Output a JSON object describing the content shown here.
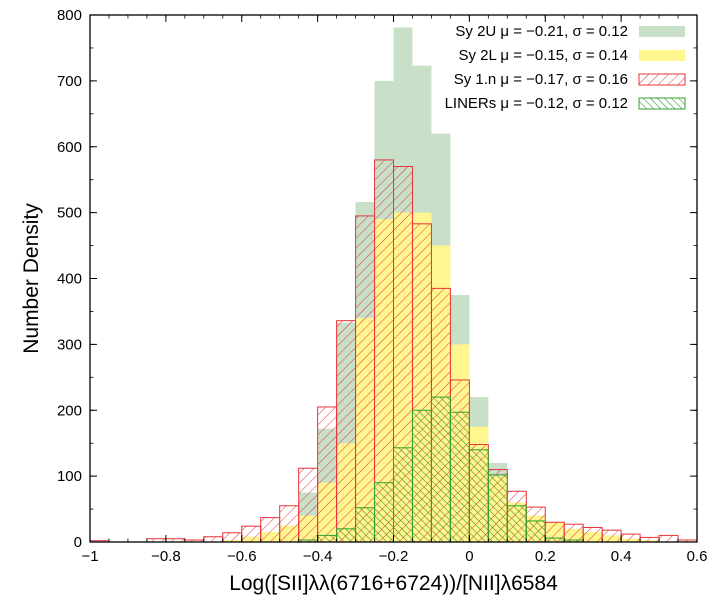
{
  "chart_data": {
    "type": "bar",
    "xlabel": "Log([SII]λλ(6716+6724))/[NII]λ6584",
    "ylabel": "Number Density",
    "xlim": [
      -1.0,
      0.6
    ],
    "ylim": [
      0,
      800
    ],
    "bin_width": 0.05,
    "x_ticks": [
      -1,
      -0.8,
      -0.6,
      -0.4,
      -0.2,
      0,
      0.2,
      0.4,
      0.6
    ],
    "x_tick_labels": [
      "−1",
      "−0.8",
      "−0.6",
      "−0.4",
      "−0.2",
      "0",
      "0.2",
      "0.4",
      "0.6"
    ],
    "y_ticks": [
      0,
      100,
      200,
      300,
      400,
      500,
      600,
      700,
      800
    ],
    "y_tick_labels": [
      "0",
      "100",
      "200",
      "300",
      "400",
      "500",
      "600",
      "700",
      "800"
    ],
    "grid": false,
    "legend_position": "top-right",
    "series": [
      {
        "name": "Sy 2U μ = −0.21, σ = 0.12",
        "style": "solid",
        "color": "#c8dfc8",
        "x": [
          -0.5,
          -0.45,
          -0.4,
          -0.35,
          -0.3,
          -0.25,
          -0.2,
          -0.15,
          -0.1,
          -0.05,
          0.0,
          0.05,
          0.1,
          0.15,
          0.2
        ],
        "values": [
          20,
          75,
          172,
          333,
          516,
          700,
          781,
          723,
          620,
          375,
          220,
          120,
          40,
          15,
          5
        ]
      },
      {
        "name": "Sy 2L μ = −0.15, σ = 0.14",
        "style": "solid",
        "color": "#fff68f",
        "x": [
          -0.65,
          -0.6,
          -0.55,
          -0.5,
          -0.45,
          -0.4,
          -0.35,
          -0.3,
          -0.25,
          -0.2,
          -0.15,
          -0.1,
          -0.05,
          0.0,
          0.05,
          0.1,
          0.15,
          0.2,
          0.25,
          0.3,
          0.35,
          0.4,
          0.45
        ],
        "values": [
          3,
          8,
          15,
          25,
          40,
          90,
          150,
          340,
          490,
          500,
          500,
          450,
          300,
          175,
          100,
          60,
          40,
          30,
          20,
          15,
          10,
          5,
          3
        ]
      },
      {
        "name": "Sy 1.n μ = −0.17, σ = 0.16",
        "style": "hatch",
        "color": "#e8343a",
        "x": [
          -1.0,
          -0.95,
          -0.9,
          -0.85,
          -0.8,
          -0.75,
          -0.7,
          -0.65,
          -0.6,
          -0.55,
          -0.5,
          -0.45,
          -0.4,
          -0.35,
          -0.3,
          -0.25,
          -0.2,
          -0.15,
          -0.1,
          -0.05,
          0.0,
          0.05,
          0.1,
          0.15,
          0.2,
          0.25,
          0.3,
          0.35,
          0.4,
          0.45,
          0.5,
          0.55
        ],
        "values": [
          2,
          0,
          0,
          5,
          5,
          3,
          8,
          14,
          24,
          37,
          55,
          112,
          205,
          336,
          495,
          580,
          570,
          483,
          385,
          246,
          148,
          110,
          77,
          53,
          30,
          27,
          22,
          18,
          12,
          7,
          10,
          3
        ]
      },
      {
        "name": "LINERs μ = −0.12, σ = 0.12",
        "style": "hatch",
        "color": "#33a02c",
        "x": [
          -0.45,
          -0.4,
          -0.35,
          -0.3,
          -0.25,
          -0.2,
          -0.15,
          -0.1,
          -0.05,
          0.0,
          0.05,
          0.1,
          0.15,
          0.2,
          0.25
        ],
        "values": [
          3,
          10,
          20,
          52,
          90,
          143,
          200,
          220,
          197,
          140,
          102,
          55,
          32,
          6,
          3
        ]
      }
    ]
  }
}
